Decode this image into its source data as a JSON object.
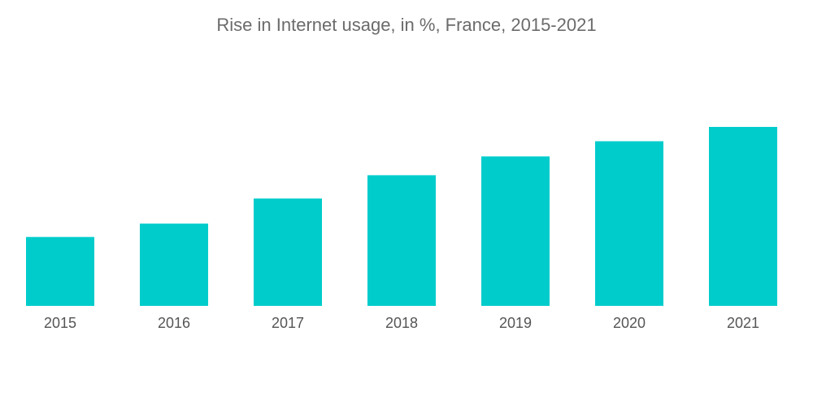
{
  "chart_data": {
    "type": "bar",
    "title": "Rise in Internet usage, in %, France, 2015-2021",
    "xlabel": "",
    "ylabel": "",
    "categories": [
      "2015",
      "2016",
      "2017",
      "2018",
      "2019",
      "2020",
      "2021"
    ],
    "values": [
      38.5,
      46,
      60,
      73,
      83.5,
      92,
      100
    ],
    "ylim": [
      0,
      100
    ],
    "grid": false,
    "legend": "none",
    "bar_color": "#00cccc"
  }
}
